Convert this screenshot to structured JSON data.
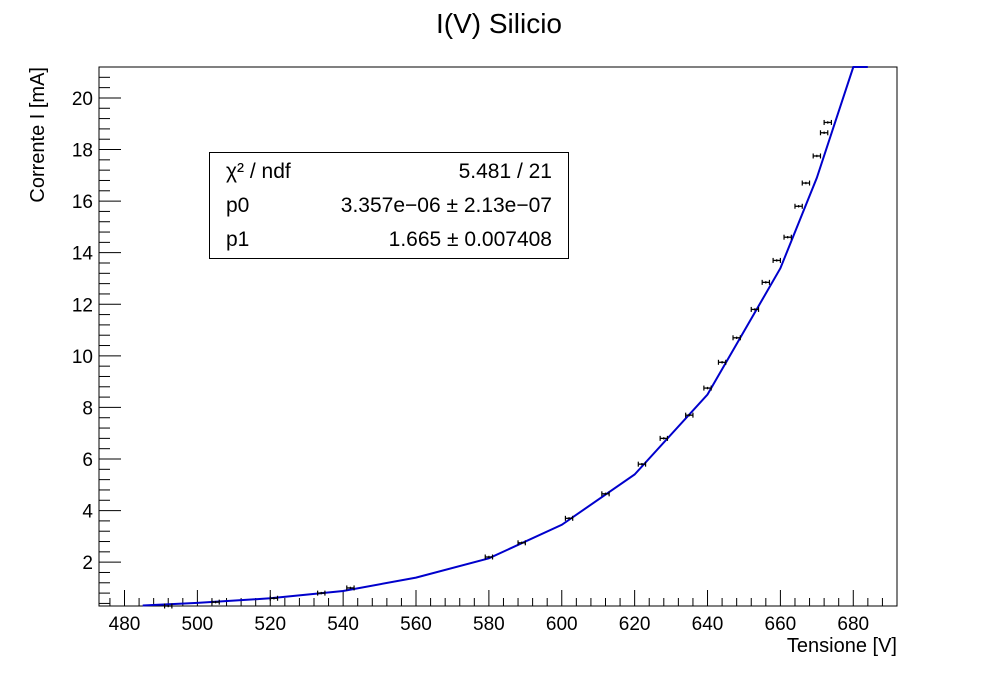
{
  "chart_data": {
    "type": "scatter",
    "title": "I(V) Silicio",
    "xlabel": "Tensione [V]",
    "ylabel": "Corrente I [mA]",
    "xlim": [
      473,
      692
    ],
    "ylim": [
      0.3,
      21.2
    ],
    "xticks": [
      480,
      500,
      520,
      540,
      560,
      580,
      600,
      620,
      640,
      660,
      680
    ],
    "yticks": [
      2,
      4,
      6,
      8,
      10,
      12,
      14,
      16,
      18,
      20
    ],
    "grid": false,
    "series": [
      {
        "kind": "points",
        "x_err": 1.0,
        "x": [
          492,
          505,
          521,
          534,
          542,
          580,
          589,
          602,
          612,
          622,
          628,
          635,
          640,
          644,
          648,
          653,
          656,
          659,
          662,
          665,
          667,
          670,
          672,
          673
        ],
        "y": [
          0.3,
          0.45,
          0.6,
          0.8,
          1.0,
          2.2,
          2.75,
          3.7,
          4.65,
          5.8,
          6.8,
          7.7,
          8.75,
          9.75,
          10.7,
          11.8,
          12.85,
          13.7,
          14.6,
          15.8,
          16.7,
          17.75,
          18.65,
          19.05
        ]
      },
      {
        "kind": "fit",
        "color": "#0000cc",
        "x": [
          485,
          500,
          520,
          540,
          560,
          580,
          600,
          620,
          640,
          660,
          670,
          680,
          684
        ],
        "y": [
          0.32,
          0.42,
          0.6,
          0.88,
          1.4,
          2.15,
          3.45,
          5.4,
          8.5,
          13.4,
          16.9,
          21.2,
          21.3
        ]
      }
    ]
  },
  "stats": {
    "rows": [
      {
        "label": "χ² / ndf",
        "value": "5.481 / 21"
      },
      {
        "label": "p0",
        "value": "3.357e−06 ± 2.13e−07"
      },
      {
        "label": "p1",
        "value": "1.665 ± 0.007408"
      }
    ]
  }
}
